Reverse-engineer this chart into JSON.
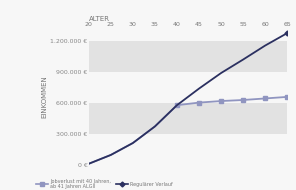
{
  "x_ages": [
    20,
    25,
    30,
    35,
    40,
    45,
    50,
    55,
    60,
    65
  ],
  "regular_y": [
    15000,
    100000,
    215000,
    375000,
    580000,
    740000,
    890000,
    1020000,
    1155000,
    1275000
  ],
  "jobverlust_y": [
    15000,
    100000,
    215000,
    375000,
    580000,
    605000,
    620000,
    630000,
    645000,
    660000
  ],
  "x_label": "ALTER",
  "y_label": "EINKOMMEN",
  "y_ticks": [
    0,
    300000,
    600000,
    900000,
    1200000
  ],
  "y_tick_labels": [
    "0 €",
    "300.000 €",
    "600.000 €",
    "900.000 €",
    "1.200.000 €"
  ],
  "x_ticks": [
    20,
    25,
    30,
    35,
    40,
    45,
    50,
    55,
    60,
    65
  ],
  "legend_label_jobverlust": "Jobverlust mit 40 Jahren,\nab 41 Jahren ALGII",
  "legend_label_regular": "Regulärer Verlauf",
  "color_regular": "#2b3060",
  "color_jobverlust": "#9095c0",
  "bg_stripe_color": "#e2e2e2",
  "bg_white": "#f7f7f7",
  "ylim": [
    0,
    1320000
  ],
  "xlim": [
    20,
    65
  ],
  "jobverlust_markers_from": 4
}
